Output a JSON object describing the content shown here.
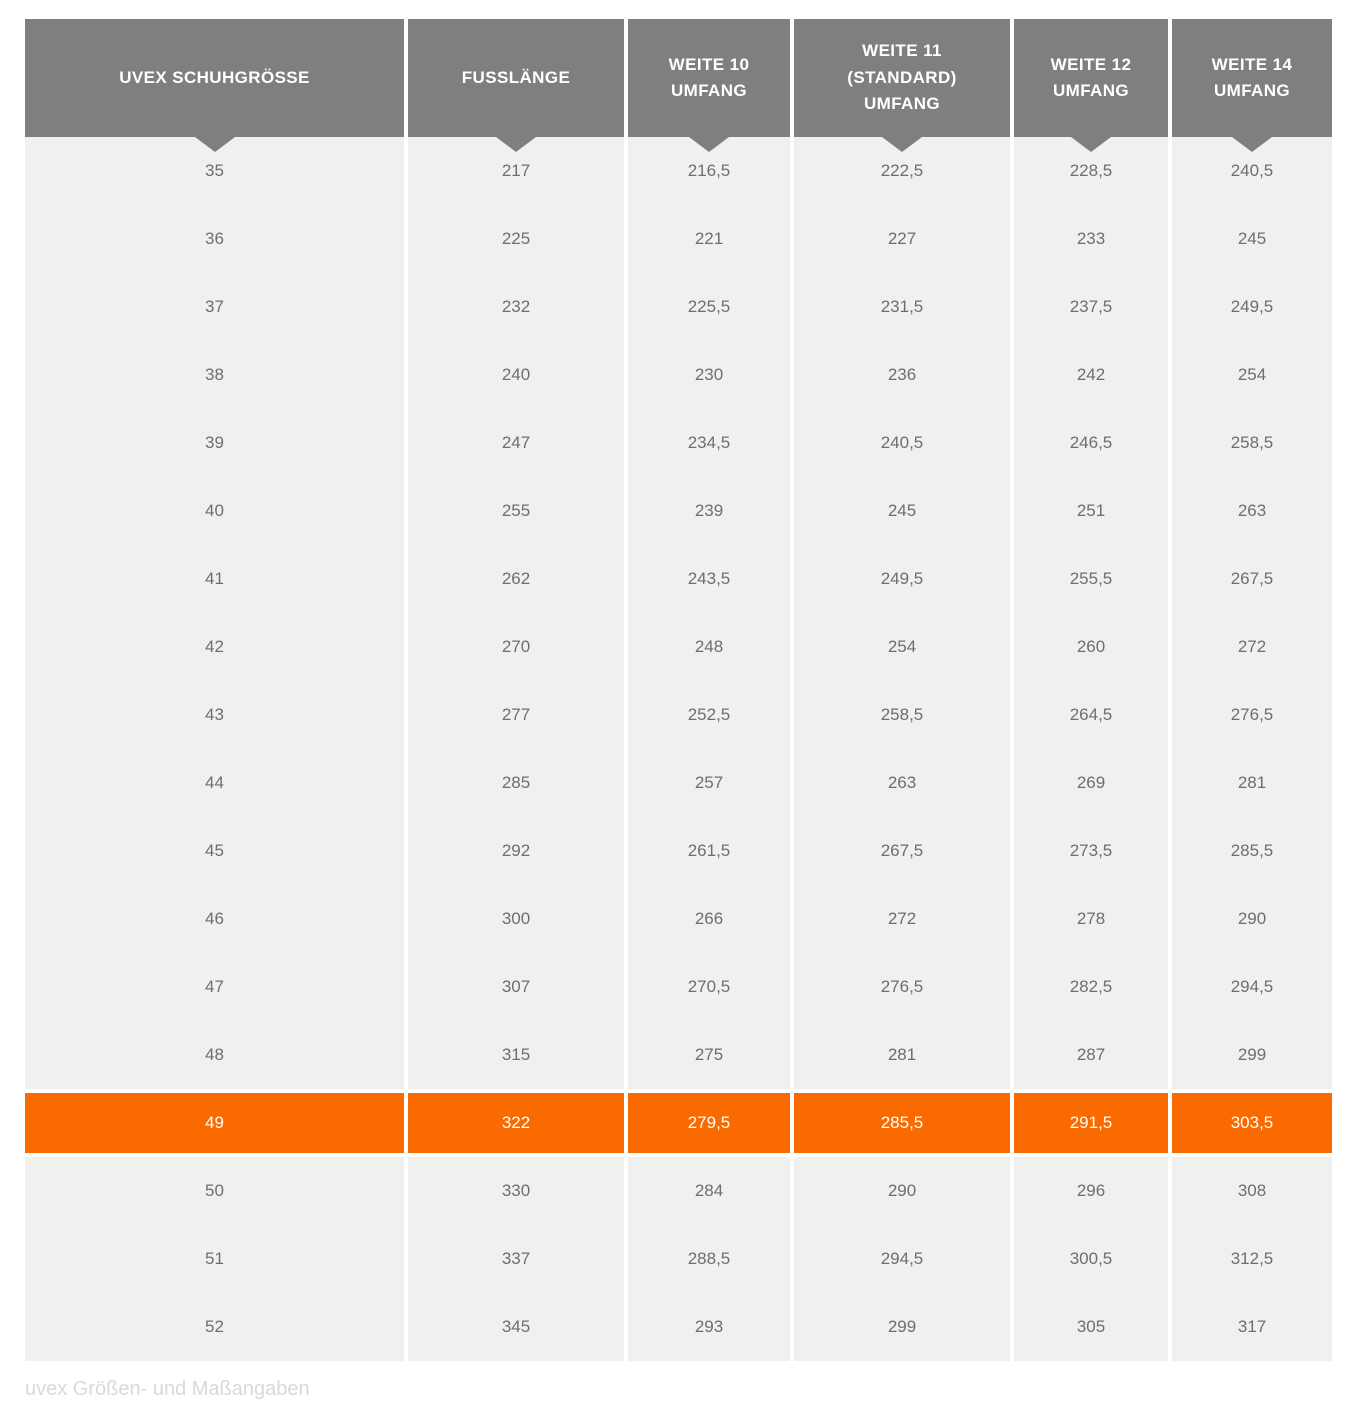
{
  "caption": "uvex Größen- und Maßangaben",
  "colors": {
    "header_bg": "#7f7f7f",
    "header_text": "#ffffff",
    "row_bg": "#f0f0ef",
    "body_text": "#6e6e6e",
    "highlight_bg": "#f96a00",
    "highlight_text": "#ffffff",
    "caption_text": "#d9d9d9",
    "page_bg": "#ffffff"
  },
  "table": {
    "columns": [
      {
        "label": "UVEX SCHUHGRÖSSE",
        "lines": [
          "UVEX SCHUHGRÖSSE"
        ]
      },
      {
        "label": "FUSSLÄNGE",
        "lines": [
          "FUSSLÄNGE"
        ]
      },
      {
        "label": "WEITE 10 UMFANG",
        "lines": [
          "WEITE 10",
          "UMFANG"
        ]
      },
      {
        "label": "WEITE 11 (STANDARD) UMFANG",
        "lines": [
          "WEITE 11",
          "(STANDARD)",
          "UMFANG"
        ]
      },
      {
        "label": "WEITE 12 UMFANG",
        "lines": [
          "WEITE 12",
          "UMFANG"
        ]
      },
      {
        "label": "WEITE 14 UMFANG",
        "lines": [
          "WEITE 14",
          "UMFANG"
        ]
      }
    ],
    "highlighted_row_index": 14,
    "highlighted_size": "49"
  },
  "chart_data": {
    "type": "table",
    "title": "uvex Größen- und Maßangaben",
    "columns": [
      "UVEX SCHUHGRÖSSE",
      "FUSSLÄNGE",
      "WEITE 10 UMFANG",
      "WEITE 11 (STANDARD) UMFANG",
      "WEITE 12 UMFANG",
      "WEITE 14 UMFANG"
    ],
    "highlighted_row": "49",
    "rows": [
      [
        "35",
        "217",
        "216,5",
        "222,5",
        "228,5",
        "240,5"
      ],
      [
        "36",
        "225",
        "221",
        "227",
        "233",
        "245"
      ],
      [
        "37",
        "232",
        "225,5",
        "231,5",
        "237,5",
        "249,5"
      ],
      [
        "38",
        "240",
        "230",
        "236",
        "242",
        "254"
      ],
      [
        "39",
        "247",
        "234,5",
        "240,5",
        "246,5",
        "258,5"
      ],
      [
        "40",
        "255",
        "239",
        "245",
        "251",
        "263"
      ],
      [
        "41",
        "262",
        "243,5",
        "249,5",
        "255,5",
        "267,5"
      ],
      [
        "42",
        "270",
        "248",
        "254",
        "260",
        "272"
      ],
      [
        "43",
        "277",
        "252,5",
        "258,5",
        "264,5",
        "276,5"
      ],
      [
        "44",
        "285",
        "257",
        "263",
        "269",
        "281"
      ],
      [
        "45",
        "292",
        "261,5",
        "267,5",
        "273,5",
        "285,5"
      ],
      [
        "46",
        "300",
        "266",
        "272",
        "278",
        "290"
      ],
      [
        "47",
        "307",
        "270,5",
        "276,5",
        "282,5",
        "294,5"
      ],
      [
        "48",
        "315",
        "275",
        "281",
        "287",
        "299"
      ],
      [
        "49",
        "322",
        "279,5",
        "285,5",
        "291,5",
        "303,5"
      ],
      [
        "50",
        "330",
        "284",
        "290",
        "296",
        "308"
      ],
      [
        "51",
        "337",
        "288,5",
        "294,5",
        "300,5",
        "312,5"
      ],
      [
        "52",
        "345",
        "293",
        "299",
        "305",
        "317"
      ]
    ]
  }
}
